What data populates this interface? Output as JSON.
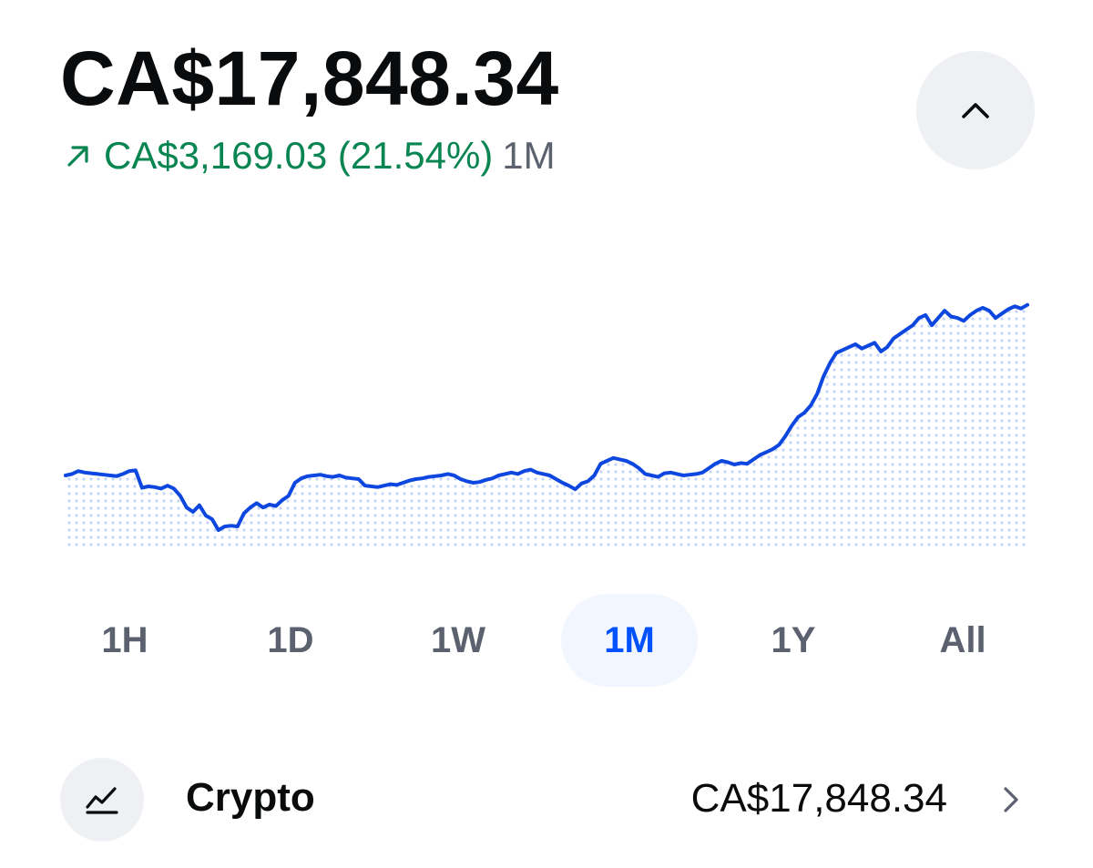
{
  "portfolio": {
    "balance": "CA$17,848.34",
    "change_amount": "CA$3,169.03 (21.54%)",
    "change_period": "1M",
    "change_direction": "up",
    "accent_positive": "#098551",
    "accent_brand": "#0052ff"
  },
  "controls": {
    "collapse_icon": "chevron-up-icon"
  },
  "timeframes": {
    "options": [
      "1H",
      "1D",
      "1W",
      "1M",
      "1Y",
      "All"
    ],
    "selected": "1M"
  },
  "chart_data": {
    "type": "area",
    "title": "",
    "xlabel": "",
    "ylabel": "",
    "style": "line with dotted fill",
    "series": [
      {
        "values": [
          14700,
          14720,
          14760,
          14740,
          14730,
          14720,
          14710,
          14700,
          14690,
          14720,
          14760,
          14770,
          14530,
          14550,
          14540,
          14520,
          14560,
          14520,
          14420,
          14260,
          14200,
          14290,
          14150,
          14100,
          13950,
          14000,
          14010,
          14000,
          14180,
          14260,
          14320,
          14260,
          14300,
          14280,
          14360,
          14420,
          14600,
          14660,
          14690,
          14700,
          14710,
          14690,
          14680,
          14700,
          14670,
          14660,
          14650,
          14560,
          14550,
          14540,
          14560,
          14580,
          14570,
          14600,
          14630,
          14650,
          14660,
          14680,
          14690,
          14700,
          14720,
          14700,
          14650,
          14620,
          14600,
          14610,
          14640,
          14660,
          14700,
          14720,
          14740,
          14720,
          14760,
          14780,
          14740,
          14720,
          14700,
          14650,
          14600,
          14560,
          14510,
          14590,
          14620,
          14700,
          14860,
          14900,
          14940,
          14920,
          14900,
          14860,
          14800,
          14720,
          14700,
          14680,
          14730,
          14740,
          14720,
          14700,
          14710,
          14720,
          14740,
          14800,
          14860,
          14900,
          14880,
          14850,
          14870,
          14860,
          14920,
          14980,
          15020,
          15060,
          15120,
          15240,
          15380,
          15500,
          15560,
          15660,
          15820,
          16060,
          16240,
          16380,
          16420,
          16460,
          16500,
          16440,
          16480,
          16520,
          16400,
          16460,
          16580,
          16640,
          16700,
          16760,
          16860,
          16900,
          16760,
          16860,
          16960,
          16880,
          16860,
          16820,
          16900,
          16960,
          17000,
          16960,
          16860,
          16920,
          16980,
          17020,
          16990,
          17040
        ]
      }
    ],
    "ylim": [
      13700,
      17848.34
    ],
    "grid": false,
    "legend": "none"
  },
  "asset": {
    "name": "Crypto",
    "value": "CA$17,848.34",
    "icon": "trend-chart-icon",
    "chevron_icon": "chevron-right-icon"
  }
}
